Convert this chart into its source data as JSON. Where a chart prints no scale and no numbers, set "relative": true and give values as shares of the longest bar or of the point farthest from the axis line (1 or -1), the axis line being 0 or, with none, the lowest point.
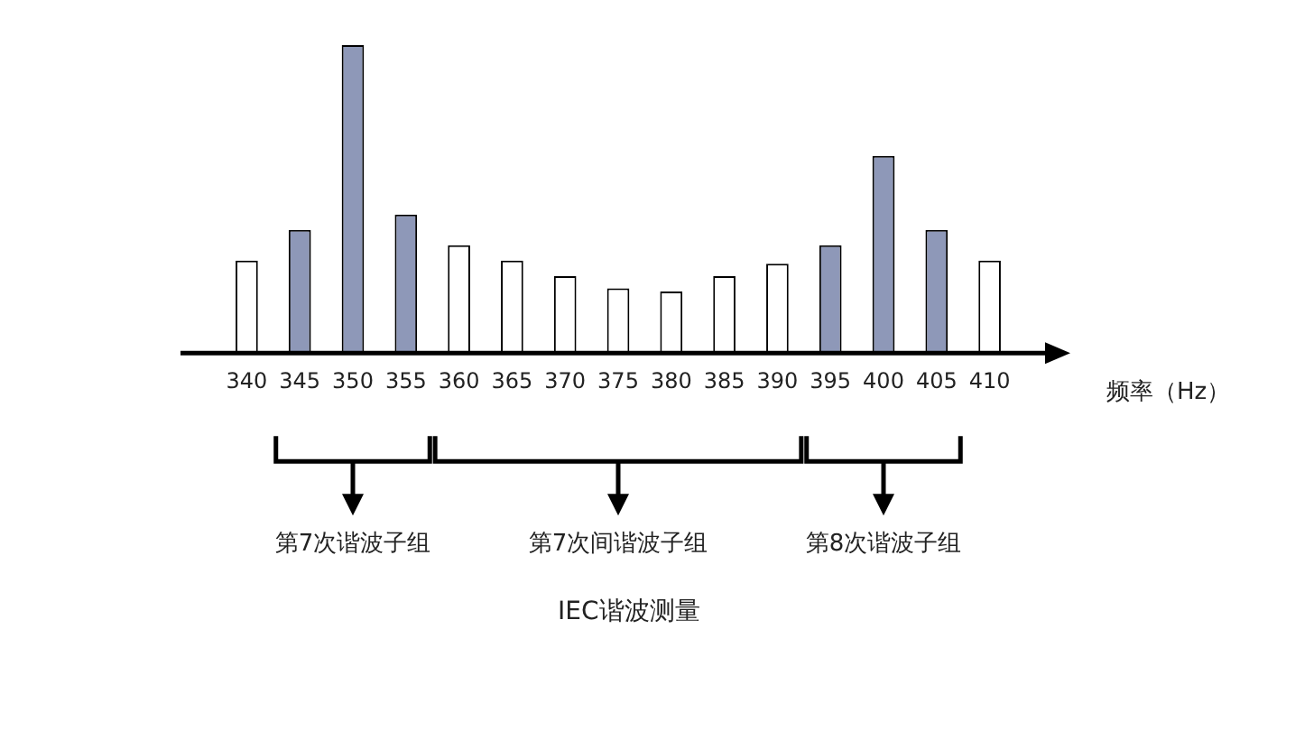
{
  "chart_data": {
    "type": "bar",
    "relative": true,
    "categories": [
      "340",
      "345",
      "350",
      "355",
      "360",
      "365",
      "370",
      "375",
      "380",
      "385",
      "390",
      "395",
      "400",
      "405",
      "410"
    ],
    "values": [
      0.3,
      0.4,
      1,
      0.45,
      0.35,
      0.3,
      0.25,
      0.21,
      0.2,
      0.25,
      0.29,
      0.35,
      0.64,
      0.4,
      0.3
    ],
    "colors": [
      "#ffffff",
      "#8e98b8",
      "#8e98b8",
      "#8e98b8",
      "#ffffff",
      "#ffffff",
      "#ffffff",
      "#ffffff",
      "#ffffff",
      "#ffffff",
      "#ffffff",
      "#8e98b8",
      "#8e98b8",
      "#8e98b8",
      "#ffffff"
    ],
    "xlabel": "频率（Hz）",
    "annotations": [
      "第7次谐波子组",
      "第7次间谐波子组",
      "第8次谐波子组",
      "IEC谐波测量"
    ],
    "grid": false,
    "legend": false
  }
}
